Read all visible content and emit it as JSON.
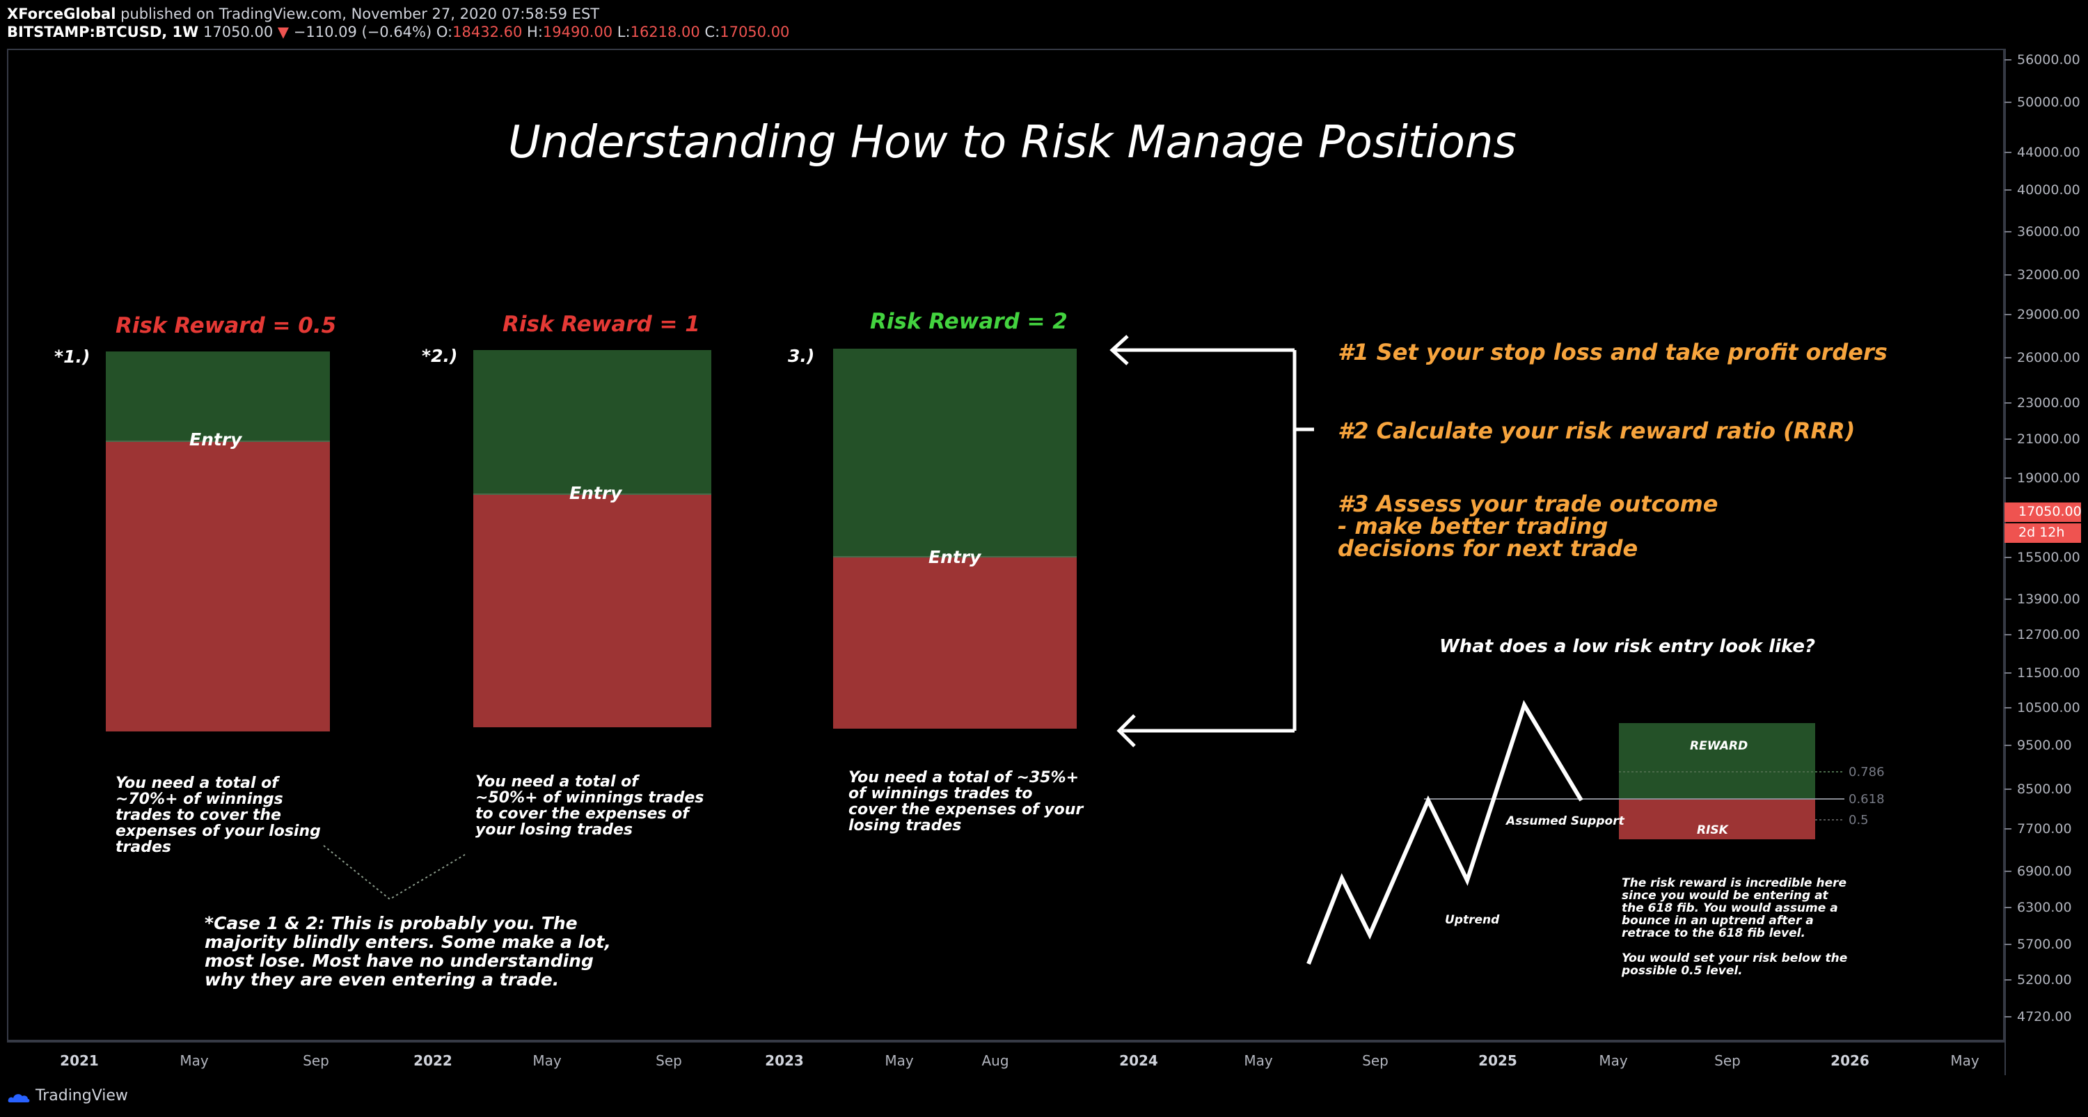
{
  "header": {
    "author": "XForceGlobal",
    "published_text": "published on TradingView.com, November 27, 2020 07:58:59 EST",
    "symbol": "BITSTAMP:BTCUSD, 1W",
    "last_price": "17050.00",
    "change_arrow": "▼",
    "change": "−110.09 (−0.64%)",
    "o_label": "O:",
    "o_value": "18432.60",
    "h_label": "H:",
    "h_value": "19490.00",
    "l_label": "L:",
    "l_value": "16218.00",
    "c_label": "C:",
    "c_value": "17050.00"
  },
  "price_axis": {
    "labels": [
      "56000.00",
      "50000.00",
      "44000.00",
      "40000.00",
      "36000.00",
      "32000.00",
      "29000.00",
      "26000.00",
      "23000.00",
      "21000.00",
      "19000.00",
      "15500.00",
      "13900.00",
      "12700.00",
      "11500.00",
      "10500.00",
      "9500.00",
      "8500.00",
      "7700.00",
      "6900.00",
      "6300.00",
      "5700.00",
      "5200.00",
      "4720.00"
    ],
    "current_price": "17050.00",
    "countdown": "2d 12h",
    "current_color": "#ef5350"
  },
  "time_axis": {
    "labels": [
      {
        "text": "2021",
        "year": true
      },
      {
        "text": "May",
        "year": false
      },
      {
        "text": "Sep",
        "year": false
      },
      {
        "text": "2022",
        "year": true
      },
      {
        "text": "May",
        "year": false
      },
      {
        "text": "Sep",
        "year": false
      },
      {
        "text": "2023",
        "year": true
      },
      {
        "text": "May",
        "year": false
      },
      {
        "text": "Aug",
        "year": false
      },
      {
        "text": "2024",
        "year": true
      },
      {
        "text": "May",
        "year": false
      },
      {
        "text": "Sep",
        "year": false
      },
      {
        "text": "2025",
        "year": true
      },
      {
        "text": "May",
        "year": false
      },
      {
        "text": "Sep",
        "year": false
      },
      {
        "text": "2026",
        "year": true
      },
      {
        "text": "May",
        "year": false
      }
    ]
  },
  "annotations": {
    "title": "Understanding How to Risk Manage Positions",
    "cases": [
      {
        "rr_label": "Risk Reward = 0.5",
        "rr_color": "#e53935",
        "number": "*1.)",
        "entry": "Entry",
        "note": "You need a total of ~70%+ of winnings trades to cover the expenses of your losing trades"
      },
      {
        "rr_label": "Risk Reward = 1",
        "rr_color": "#e53935",
        "number": "*2.)",
        "entry": "Entry",
        "note": "You need a total of ~50%+ of winnings trades to cover the expenses of your losing trades"
      },
      {
        "rr_label": "Risk Reward = 2",
        "rr_color": "#43d33f",
        "number": "3.)",
        "entry": "Entry",
        "note": "You need a total of ~35%+ of winnings trades to cover the expenses of your losing trades"
      }
    ],
    "steps": {
      "step1": "#1 Set your stop loss and take profit orders",
      "step2": "#2 Calculate your risk reward ratio (RRR)",
      "step3": "#3 Assess your trade outcome - make better trading decisions for next trade"
    },
    "case_note": "*Case 1 & 2: This is probably you. The majority blindly enters. Some make a lot, most lose. Most have no understanding why they are even entering a trade.",
    "example": {
      "question": "What does a low risk entry look like?",
      "reward": "REWARD",
      "risk": "RISK",
      "assumed_support": "Assumed Support",
      "uptrend": "Uptrend",
      "fib_0786": "0.786",
      "fib_0618": "0.618",
      "fib_05": "0.5",
      "explanation_1": "The risk reward is incredible here since you would be entering at the 618 fib. You would assume a bounce in an uptrend after a retrace to the 618 fib level.",
      "explanation_2": "You would set your risk below the possible 0.5 level."
    }
  },
  "colors": {
    "reward_green": "#245128",
    "risk_red": "#9d3434",
    "step_orange": "#f7a43d"
  },
  "footer": {
    "brand": "TradingView"
  }
}
